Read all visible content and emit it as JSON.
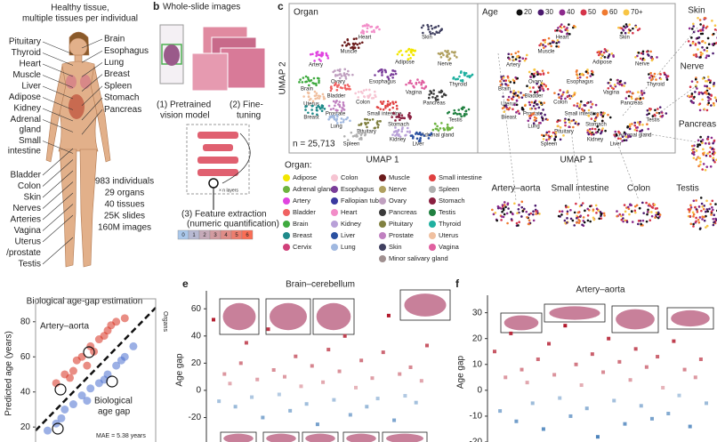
{
  "panel_a": {
    "title": [
      "Healthy tissue,",
      "multiple tissues per individual"
    ],
    "left_labels": [
      "Pituitary",
      "Thyroid",
      "Heart",
      "Muscle",
      "Liver",
      "Adipose",
      "Kidney",
      "Adrenal",
      "gland",
      "Small",
      "intestine",
      "Bladder",
      "Colon",
      "Skin",
      "Nerves",
      "Arteries",
      "Vagina",
      "Uterus",
      "/prostate",
      "Testis"
    ],
    "right_labels": [
      "Brain",
      "Esophagus",
      "Lung",
      "Breast",
      "Spleen",
      "Stomach",
      "Pancreas"
    ],
    "stats": [
      "983 individuals",
      "29 organs",
      "40 tissues",
      "25K slides",
      "160M images"
    ]
  },
  "panel_b": {
    "label": "b",
    "title": "Whole-slide images",
    "step1": [
      "(1) Pretrained",
      "vision model"
    ],
    "step2": [
      "(2) Fine-",
      "tuning"
    ],
    "layers": "× n layers",
    "step3": [
      "(3) Feature extraction",
      "(numeric quantification)"
    ],
    "scale": [
      "0",
      "1",
      "2",
      "3",
      "4",
      "5",
      "6"
    ]
  },
  "panel_c": {
    "label": "c",
    "organ_title": "Organ",
    "age_title": "Age",
    "age_legend": [
      {
        "label": "20",
        "color": "#111111"
      },
      {
        "label": "30",
        "color": "#4b1a6e"
      },
      {
        "label": "40",
        "color": "#8c2a8c"
      },
      {
        "label": "50",
        "color": "#d5344a"
      },
      {
        "label": "60",
        "color": "#f07a30"
      },
      {
        "label": "70+",
        "color": "#f8c545"
      }
    ],
    "y_axis": "UMAP 2",
    "x_axis": "UMAP 1",
    "n": "n = 25,713",
    "zoom_labels": [
      "Skin",
      "Nerve",
      "Pancreas",
      "Testis",
      "Artery–aorta",
      "Small intestine",
      "Colon"
    ],
    "legend_title": "Organ:",
    "legend": [
      {
        "name": "Adipose",
        "color": "#f2e600"
      },
      {
        "name": "Adrenal gland",
        "color": "#6db33f"
      },
      {
        "name": "Artery",
        "color": "#e044e0"
      },
      {
        "name": "Bladder",
        "color": "#f06262"
      },
      {
        "name": "Brain",
        "color": "#3faa3f"
      },
      {
        "name": "Breast",
        "color": "#1f8a8a"
      },
      {
        "name": "Cervix",
        "color": "#d0407a"
      },
      {
        "name": "Colon",
        "color": "#f6c4d2"
      },
      {
        "name": "Esophagus",
        "color": "#7a3d9a"
      },
      {
        "name": "Fallopian tube",
        "color": "#3a3aa0"
      },
      {
        "name": "Heart",
        "color": "#f28cc8"
      },
      {
        "name": "Kidney",
        "color": "#b8a0d8"
      },
      {
        "name": "Liver",
        "color": "#2a50a0"
      },
      {
        "name": "Lung",
        "color": "#a0b8e0"
      },
      {
        "name": "Muscle",
        "color": "#6a1a1a"
      },
      {
        "name": "Nerve",
        "color": "#b0a060"
      },
      {
        "name": "Ovary",
        "color": "#c0a0c0"
      },
      {
        "name": "Pancreas",
        "color": "#3a3a3a"
      },
      {
        "name": "Pituitary",
        "color": "#808040"
      },
      {
        "name": "Prostate",
        "color": "#c080c0"
      },
      {
        "name": "Skin",
        "color": "#404060"
      },
      {
        "name": "Minor salivary gland",
        "color": "#a09090"
      },
      {
        "name": "Small intestine",
        "color": "#e04040"
      },
      {
        "name": "Spleen",
        "color": "#b0b0b0"
      },
      {
        "name": "Stomach",
        "color": "#8a2040"
      },
      {
        "name": "Testis",
        "color": "#208040"
      },
      {
        "name": "Thyroid",
        "color": "#20b0a0"
      },
      {
        "name": "Uterus",
        "color": "#f0c0a0"
      },
      {
        "name": "Vagina",
        "color": "#e060a0"
      }
    ]
  },
  "panel_labels": {
    "e": "e",
    "f": "f"
  },
  "chart_data": [
    {
      "type": "scatter",
      "title": "Biological age-gap estimation",
      "annotation": "Artery–aorta",
      "ylabel": "Predicted age (years)",
      "side_label": "Organs",
      "gap_label": [
        "Biological",
        "age gap"
      ],
      "mae": "MAE = 5.38 years",
      "x": [
        30,
        35,
        40,
        45,
        50,
        55,
        60,
        65,
        70,
        52,
        42,
        58,
        48,
        62,
        38,
        25,
        30,
        35,
        40,
        45,
        50,
        55,
        60,
        65,
        70,
        75,
        48,
        58,
        68,
        33
      ],
      "values": [
        45,
        50,
        52,
        60,
        66,
        70,
        75,
        80,
        82,
        63,
        58,
        72,
        55,
        78,
        48,
        18,
        22,
        30,
        33,
        38,
        42,
        45,
        50,
        55,
        60,
        66,
        35,
        47,
        58,
        25
      ],
      "xlim": [
        18,
        88
      ],
      "ylim": [
        13,
        88
      ],
      "yticks": [
        20,
        40,
        60,
        80
      ],
      "colors": {
        "above": "#d7301f",
        "below": "#4a6fd0"
      }
    },
    {
      "type": "strip",
      "title": "Brain–cerebellum",
      "ylabel": "Age gap",
      "values": [
        52,
        -8,
        12,
        5,
        -12,
        20,
        35,
        -5,
        8,
        -20,
        45,
        15,
        -3,
        10,
        -15,
        25,
        3,
        -10,
        18,
        -25,
        6,
        30,
        -7,
        14,
        40,
        -18,
        2,
        22,
        -12,
        9,
        -6,
        28,
        55,
        -22,
        12,
        -4,
        17,
        -9,
        7,
        33
      ],
      "ylim": [
        -38,
        68
      ],
      "yticks": [
        -20,
        0,
        20,
        40,
        60
      ],
      "colors": {
        "positive": "#b2182b",
        "negative": "#2166ac"
      }
    },
    {
      "type": "strip",
      "title": "Artery–aorta",
      "ylabel": "Age gap",
      "values": [
        15,
        -8,
        5,
        22,
        -12,
        8,
        3,
        -5,
        12,
        -15,
        18,
        6,
        -3,
        25,
        -10,
        10,
        2,
        -7,
        14,
        -18,
        7,
        20,
        -4,
        11,
        -13,
        4,
        16,
        -6,
        9,
        -11,
        13,
        1,
        -9,
        19,
        -2,
        8,
        -14,
        5,
        12,
        -5
      ],
      "ylim": [
        -20,
        34
      ],
      "yticks": [
        -20,
        -10,
        0,
        10,
        20,
        30
      ],
      "colors": {
        "positive": "#b2182b",
        "negative": "#2166ac"
      }
    }
  ]
}
